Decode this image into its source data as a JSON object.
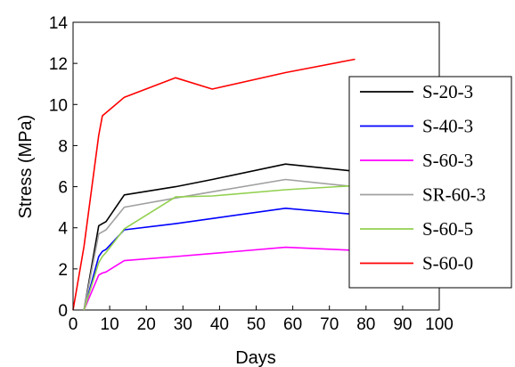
{
  "chart_data": {
    "type": "line",
    "title": "",
    "xlabel": "Days",
    "ylabel": "Stress (MPa)",
    "xlim": [
      0,
      100
    ],
    "ylim": [
      0,
      14
    ],
    "x_ticks": [
      0,
      10,
      20,
      30,
      40,
      50,
      60,
      70,
      80,
      90,
      100
    ],
    "y_ticks": [
      0,
      2,
      4,
      6,
      8,
      10,
      12,
      14
    ],
    "grid": false,
    "legend_position": "right",
    "series": [
      {
        "name": "S-20-3",
        "color": "#000000",
        "x": [
          3,
          7,
          8,
          9,
          14,
          28,
          38,
          58,
          77
        ],
        "y": [
          0,
          4.1,
          4.2,
          4.3,
          5.6,
          6.0,
          6.35,
          7.1,
          6.75
        ]
      },
      {
        "name": "S-40-3",
        "color": "#0000ff",
        "x": [
          3,
          7,
          8,
          9,
          14,
          28,
          38,
          58,
          77
        ],
        "y": [
          0,
          2.6,
          2.85,
          2.95,
          3.9,
          4.2,
          4.45,
          4.95,
          4.65
        ]
      },
      {
        "name": "S-60-3",
        "color": "#ff00ff",
        "x": [
          3,
          7,
          8,
          9,
          14,
          28,
          38,
          58,
          77
        ],
        "y": [
          0,
          1.7,
          1.8,
          1.85,
          2.4,
          2.6,
          2.75,
          3.05,
          2.9
        ]
      },
      {
        "name": "SR-60-3",
        "color": "#a0a0a0",
        "x": [
          3,
          7,
          8,
          9,
          14,
          28,
          38,
          58,
          77
        ],
        "y": [
          0,
          3.7,
          3.8,
          3.9,
          5.0,
          5.45,
          5.75,
          6.35,
          6.0
        ]
      },
      {
        "name": "S-60-5",
        "color": "#92d050",
        "x": [
          3,
          7,
          8,
          9,
          14,
          28,
          38,
          58,
          77
        ],
        "y": [
          0,
          2.3,
          2.6,
          2.8,
          3.95,
          5.5,
          5.55,
          5.85,
          6.05
        ]
      },
      {
        "name": "S-60-0",
        "color": "#ff0000",
        "x": [
          0,
          3,
          7,
          8,
          14,
          28,
          38,
          58,
          77
        ],
        "y": [
          0,
          3.1,
          8.5,
          9.45,
          10.35,
          11.3,
          10.75,
          11.55,
          12.2
        ]
      }
    ]
  }
}
